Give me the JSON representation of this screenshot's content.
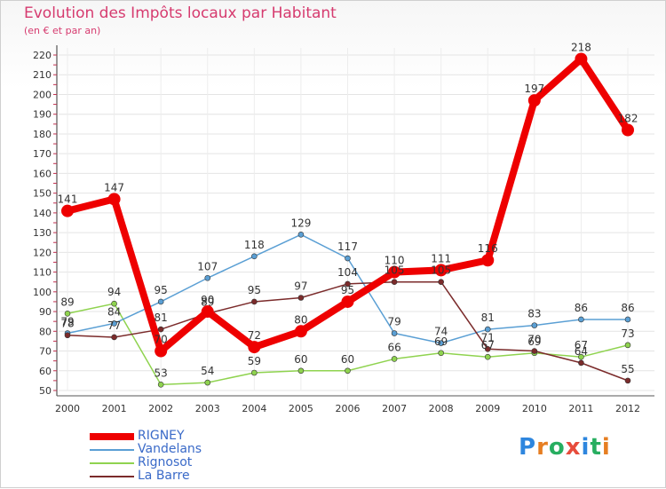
{
  "header": {
    "title": "Evolution des Impôts locaux par Habitant",
    "subtitle": "(en € et par an)"
  },
  "chart_data": {
    "type": "line",
    "title": "Evolution des Impôts locaux par Habitant",
    "subtitle": "(en € et par an)",
    "xlabel": "",
    "ylabel": "",
    "ylim": [
      50,
      220
    ],
    "y_ticks": [
      "220",
      "210",
      "200",
      "190",
      "180",
      "170",
      "160",
      "150",
      "140",
      "130",
      "120",
      "110",
      "100",
      "90",
      "80",
      "70",
      "60",
      "50"
    ],
    "x": [
      "2000",
      "2001",
      "2002",
      "2003",
      "2004",
      "2005",
      "2006",
      "2007",
      "2008",
      "2009",
      "2010",
      "2011",
      "2012"
    ],
    "series": [
      {
        "name": "RIGNEY",
        "color": "#ee0000",
        "values": [
          141,
          147,
          70,
          90,
          72,
          80,
          95,
          110,
          111,
          116,
          197,
          218,
          182
        ]
      },
      {
        "name": "Vandelans",
        "color": "#5a9fd4",
        "values": [
          79,
          84,
          95,
          107,
          118,
          129,
          117,
          79,
          74,
          81,
          83,
          86,
          86
        ]
      },
      {
        "name": "Rignosot",
        "color": "#8fd34f",
        "values": [
          89,
          94,
          53,
          54,
          59,
          60,
          60,
          66,
          69,
          67,
          69,
          67,
          73
        ]
      },
      {
        "name": "La Barre",
        "color": "#7b2b2b",
        "values": [
          78,
          77,
          81,
          89,
          95,
          97,
          104,
          105,
          105,
          71,
          70,
          64,
          55
        ]
      }
    ],
    "legend_position": "bottom-left"
  },
  "legend": {
    "items": [
      {
        "label": "RIGNEY",
        "color": "#ee0000"
      },
      {
        "label": "Vandelans",
        "color": "#5a9fd4"
      },
      {
        "label": "Rignosot",
        "color": "#8fd34f"
      },
      {
        "label": "La Barre",
        "color": "#7b2b2b"
      }
    ]
  },
  "logo": {
    "letters": [
      "P",
      "r",
      "o",
      "x",
      "i",
      "t",
      "i"
    ],
    "colors": [
      "#2e86de",
      "#e67e22",
      "#27ae60",
      "#e74c3c",
      "#2e86de",
      "#27ae60",
      "#e67e22"
    ]
  }
}
